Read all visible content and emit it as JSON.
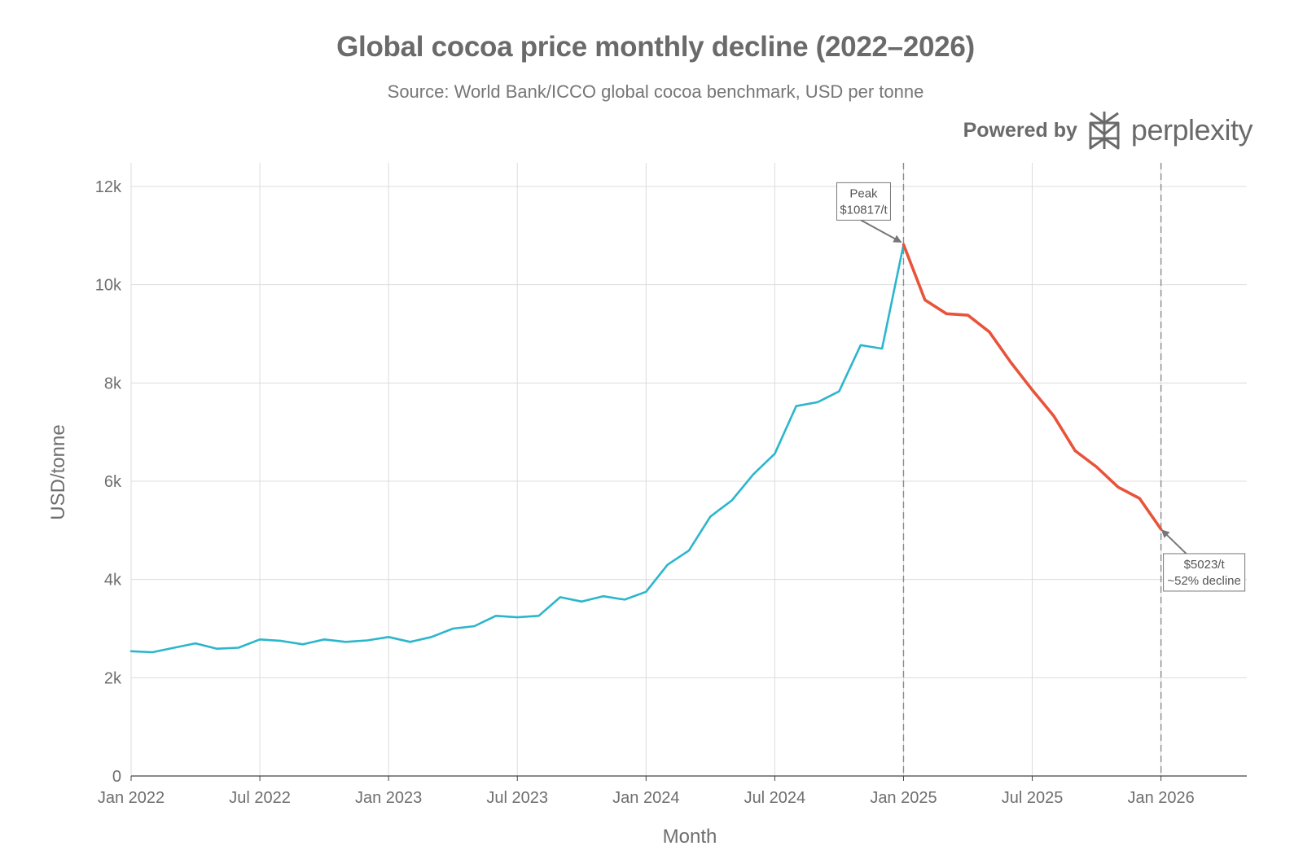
{
  "header": {
    "title": "Global cocoa price monthly decline (2022–2026)",
    "subtitle": "Source: World Bank/ICCO global cocoa benchmark, USD per tonne"
  },
  "brand": {
    "powered_by": "Powered by",
    "name": "perplexity",
    "logo_icon": "perplexity-logo-icon"
  },
  "colors": {
    "rising_series": "#2bb6cc",
    "declining_series": "#e8533a",
    "grid": "#dcdcdc",
    "reference_line": "#8a8a8a"
  },
  "chart_data": {
    "type": "line",
    "title": "Global cocoa price monthly decline (2022–2026)",
    "subtitle": "Source: World Bank/ICCO global cocoa benchmark, USD per tonne",
    "xlabel": "Month",
    "ylabel": "USD/tonne",
    "ylim": [
      0,
      12000
    ],
    "y_ticks": [
      0,
      2000,
      4000,
      6000,
      8000,
      10000,
      12000
    ],
    "y_tick_labels": [
      "0",
      "2k",
      "4k",
      "6k",
      "8k",
      "10k",
      "12k"
    ],
    "x_ticks": [
      "2022-01",
      "2022-07",
      "2023-01",
      "2023-07",
      "2024-01",
      "2024-07",
      "2025-01",
      "2025-07",
      "2026-01"
    ],
    "x_tick_labels": [
      "Jan 2022",
      "Jul 2022",
      "Jan 2023",
      "Jul 2023",
      "Jan 2024",
      "Jul 2024",
      "Jan 2025",
      "Jul 2025",
      "Jan 2026"
    ],
    "xlim": [
      "2022-01",
      "2026-05"
    ],
    "grid": true,
    "legend": "none",
    "x": [
      "2022-01",
      "2022-02",
      "2022-03",
      "2022-04",
      "2022-05",
      "2022-06",
      "2022-07",
      "2022-08",
      "2022-09",
      "2022-10",
      "2022-11",
      "2022-12",
      "2023-01",
      "2023-02",
      "2023-03",
      "2023-04",
      "2023-05",
      "2023-06",
      "2023-07",
      "2023-08",
      "2023-09",
      "2023-10",
      "2023-11",
      "2023-12",
      "2024-01",
      "2024-02",
      "2024-03",
      "2024-04",
      "2024-05",
      "2024-06",
      "2024-07",
      "2024-08",
      "2024-09",
      "2024-10",
      "2024-11",
      "2024-12",
      "2025-01",
      "2025-02",
      "2025-03",
      "2025-04",
      "2025-05",
      "2025-06",
      "2025-07",
      "2025-08",
      "2025-09",
      "2025-10",
      "2025-11",
      "2025-12",
      "2026-01"
    ],
    "series": [
      {
        "values": [
          2540,
          2520,
          2610,
          2700,
          2590,
          2610,
          2780,
          2750,
          2680,
          2780,
          2730,
          2760,
          2830,
          2730,
          2830,
          3000,
          3050,
          3260,
          3230,
          3260,
          3640,
          3550,
          3660,
          3590,
          3750,
          4300,
          4590,
          5280,
          5610,
          6140,
          6560,
          7530,
          7610,
          7830,
          8770,
          8700,
          10817,
          null,
          null,
          null,
          null,
          null,
          null,
          null,
          null,
          null,
          null,
          null,
          null
        ]
      },
      {
        "values": [
          null,
          null,
          null,
          null,
          null,
          null,
          null,
          null,
          null,
          null,
          null,
          null,
          null,
          null,
          null,
          null,
          null,
          null,
          null,
          null,
          null,
          null,
          null,
          null,
          null,
          null,
          null,
          null,
          null,
          null,
          null,
          null,
          null,
          null,
          null,
          null,
          10817,
          9690,
          9410,
          9380,
          9040,
          8420,
          7860,
          7330,
          6620,
          6290,
          5880,
          5650,
          5023
        ]
      }
    ],
    "reference_lines_x": [
      "2025-01",
      "2026-01"
    ],
    "annotations": [
      {
        "x": "2025-01",
        "y": 10817,
        "lines": [
          "Peak",
          "$10817/t"
        ]
      },
      {
        "x": "2026-01",
        "y": 5023,
        "lines": [
          "$5023/t",
          "~52% decline"
        ]
      }
    ]
  }
}
